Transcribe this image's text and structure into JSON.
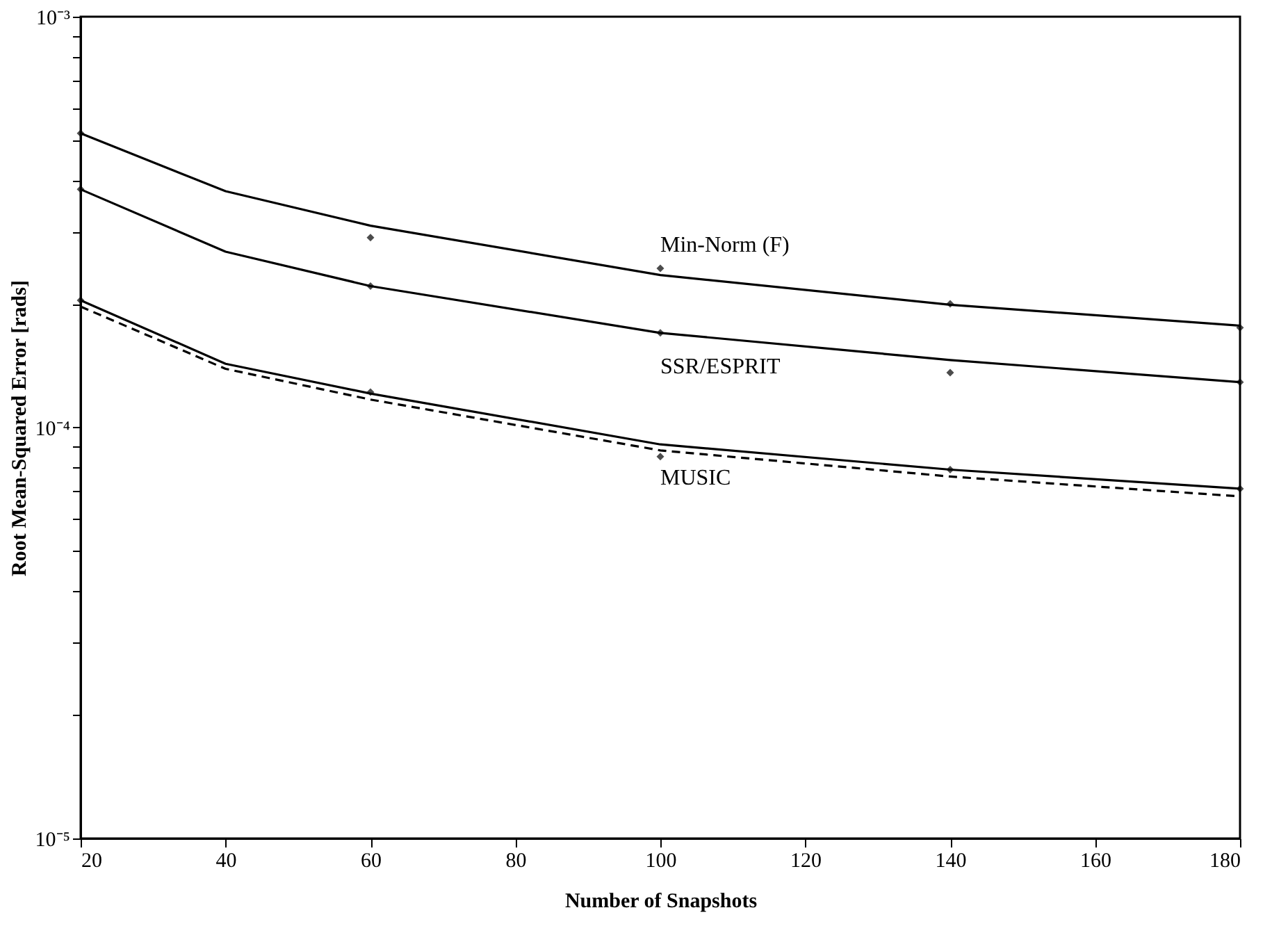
{
  "chart_data": {
    "type": "line",
    "xlabel": "Number of Snapshots",
    "ylabel": "Root Mean-Squared Error [rads]",
    "log": "y",
    "grid": false,
    "xlim": [
      20,
      180
    ],
    "xticks": [
      20,
      40,
      60,
      80,
      100,
      120,
      140,
      160,
      180
    ],
    "ylim": [
      1e-05,
      0.001
    ],
    "yticks": [
      {
        "value": 1e-05,
        "label": "10⁻⁵"
      },
      {
        "value": 2e-05,
        "label": null
      },
      {
        "value": 3e-05,
        "label": null
      },
      {
        "value": 4e-05,
        "label": null
      },
      {
        "value": 5e-05,
        "label": null
      },
      {
        "value": 6e-05,
        "label": null
      },
      {
        "value": 7e-05,
        "label": null
      },
      {
        "value": 8e-05,
        "label": null
      },
      {
        "value": 9e-05,
        "label": null
      },
      {
        "value": 0.0001,
        "label": "10⁻⁴"
      },
      {
        "value": 0.0002,
        "label": null
      },
      {
        "value": 0.0003,
        "label": null
      },
      {
        "value": 0.0004,
        "label": null
      },
      {
        "value": 0.0005,
        "label": null
      },
      {
        "value": 0.0006,
        "label": null
      },
      {
        "value": 0.0007,
        "label": null
      },
      {
        "value": 0.0008,
        "label": null
      },
      {
        "value": 0.0009,
        "label": null
      },
      {
        "value": 0.001,
        "label": "10⁻³"
      }
    ],
    "series": [
      {
        "name": "Min-Norm (F)",
        "color": "#000000",
        "line_style": "solid",
        "x": [
          20,
          40,
          60,
          100,
          140,
          180
        ],
        "values": [
          0.00052,
          0.000376,
          0.00031,
          0.000235,
          0.000199,
          0.000177
        ]
      },
      {
        "name": "SSR/ESPRIT",
        "color": "#000000",
        "line_style": "solid",
        "x": [
          20,
          40,
          60,
          100,
          140,
          180
        ],
        "values": [
          0.00038,
          0.000268,
          0.000221,
          0.00017,
          0.000146,
          0.000129
        ]
      },
      {
        "name": "MUSIC",
        "color": "#000000",
        "line_style": "solid",
        "x": [
          20,
          40,
          60,
          100,
          140,
          180
        ],
        "values": [
          0.000204,
          0.000143,
          0.000121,
          9.1e-05,
          7.9e-05,
          7.1e-05
        ]
      },
      {
        "color": "#000000",
        "line_style": "dashed",
        "x": [
          20,
          40,
          60,
          100,
          140,
          180
        ],
        "values": [
          0.000197,
          0.000139,
          0.000117,
          8.8e-05,
          7.6e-05,
          6.8e-05
        ]
      },
      {
        "type": "scatter",
        "marker": "diamond",
        "color": "#000000",
        "x": [
          20,
          60,
          100,
          140,
          180
        ],
        "values": [
          0.00052,
          0.00029,
          0.000244,
          0.0002,
          0.000175
        ]
      },
      {
        "type": "scatter",
        "marker": "diamond",
        "color": "#000000",
        "x": [
          20,
          60,
          100,
          140,
          180
        ],
        "values": [
          0.00038,
          0.000221,
          0.00017,
          0.000136,
          0.000129
        ]
      },
      {
        "type": "scatter",
        "marker": "diamond",
        "color": "#000000",
        "x": [
          20,
          60,
          100,
          140,
          180
        ],
        "values": [
          0.000204,
          0.000122,
          8.5e-05,
          7.9e-05,
          7.1e-05
        ]
      }
    ]
  }
}
